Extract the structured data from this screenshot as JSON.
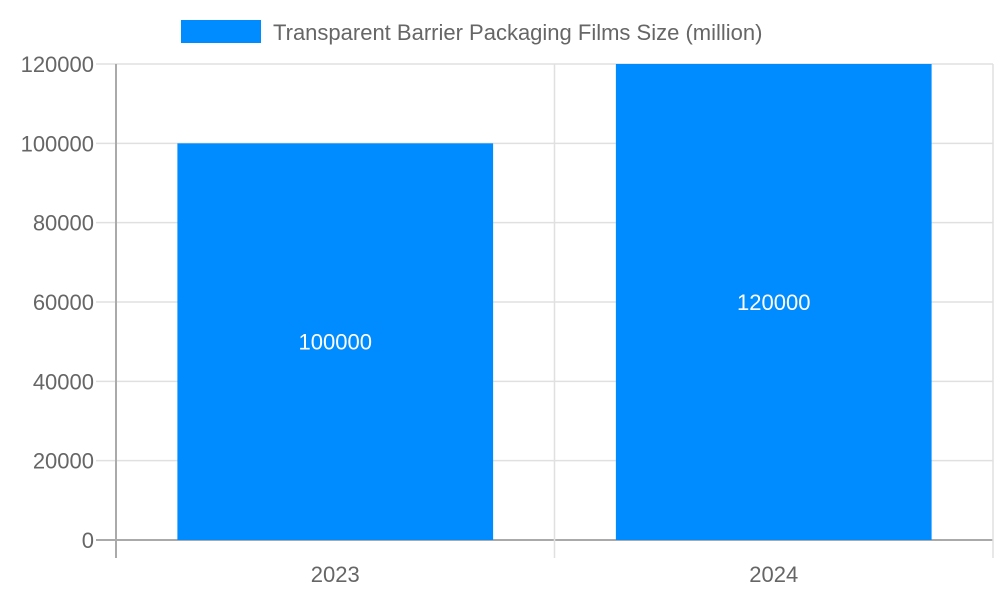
{
  "chart_data": {
    "type": "bar",
    "categories": [
      "2023",
      "2024"
    ],
    "series": [
      {
        "name": "Transparent Barrier Packaging Films Size (million)",
        "values": [
          100000,
          120000
        ],
        "color": "#008cff"
      }
    ],
    "data_labels": [
      "100000",
      "120000"
    ],
    "yticks": [
      "0",
      "20000",
      "40000",
      "60000",
      "80000",
      "100000",
      "120000"
    ],
    "ylim": [
      0,
      120000
    ],
    "grid": true,
    "legend_position": "top"
  }
}
